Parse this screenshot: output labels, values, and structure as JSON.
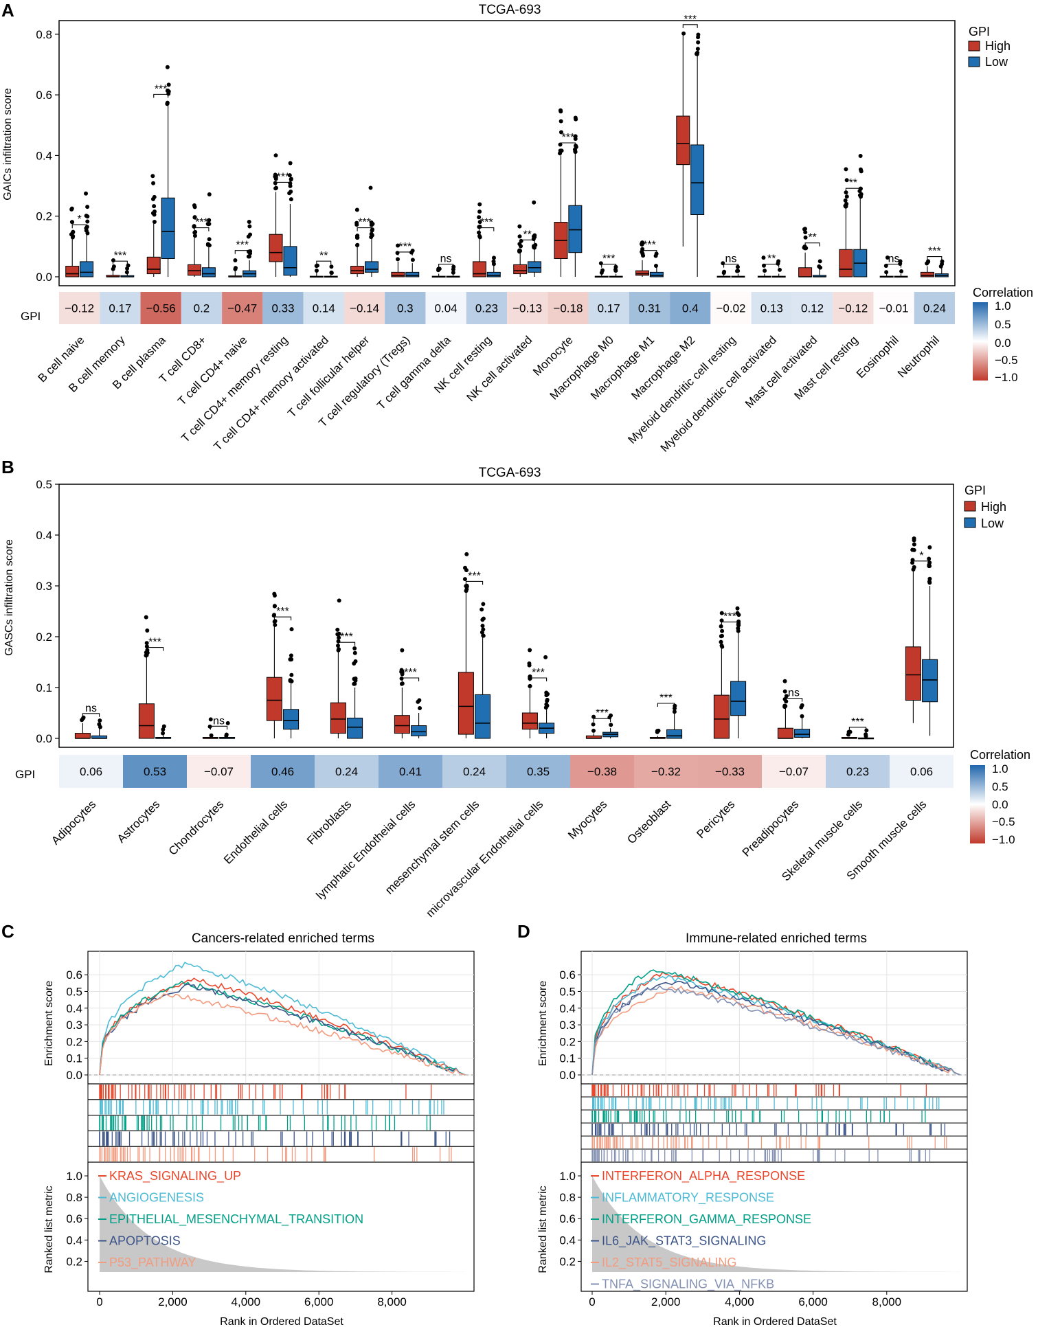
{
  "colors": {
    "high": "#C0392B",
    "low": "#1F6FB2",
    "neg": "#C0392B",
    "pos": "#2166AC"
  },
  "legend": {
    "title": "GPI",
    "high": "High",
    "low": "Low"
  },
  "colorbar": {
    "title": "Correlation",
    "ticks": [
      "1.0",
      "0.5",
      "0.0",
      "−0.5",
      "−1.0"
    ]
  },
  "panels": {
    "a": "A",
    "b": "B",
    "c": "C",
    "d": "D"
  },
  "chart_data": [
    {
      "panel": "A",
      "type": "box",
      "title": "TCGA-693",
      "ylabel": "GAICs infiltration score",
      "ylim": [
        0,
        0.82
      ],
      "yticks": [
        "0.0",
        "0.2",
        "0.4",
        "0.6",
        "0.8"
      ],
      "row_label": "GPI",
      "categories": [
        "B cell naive",
        "B cell memory",
        "B cell plasma",
        "T cell CD8+",
        "T cell CD4+ naive",
        "T cell CD4+ memory resting",
        "T cell CD4+ memory activated",
        "T cell follicular helper",
        "T cell regulatory (Tregs)",
        "T cell gamma delta",
        "NK cell resting",
        "NK cell activated",
        "Monocyte",
        "Macrophage M0",
        "Macrophage M1",
        "Macrophage M2",
        "Myeloid dendritic cell resting",
        "Myeloid dendritic cell activated",
        "Mast cell activated",
        "Mast cell resting",
        "Eosinophil",
        "Neutrophil"
      ],
      "significance": [
        "*",
        "***",
        "***",
        "***",
        "***",
        "***",
        "**",
        "***",
        "***",
        "ns",
        "***",
        "**",
        "***",
        "***",
        "***",
        "***",
        "ns",
        "**",
        "**",
        "**",
        "ns",
        "***"
      ],
      "correlation": [
        "−0.12",
        "0.17",
        "−0.56",
        "0.2",
        "−0.47",
        "0.33",
        "0.14",
        "−0.14",
        "0.3",
        "0.04",
        "0.23",
        "−0.13",
        "−0.18",
        "0.17",
        "0.31",
        "0.4",
        "−0.02",
        "0.13",
        "0.12",
        "−0.12",
        "−0.01",
        "0.24"
      ],
      "corr_values": [
        -0.12,
        0.17,
        -0.56,
        0.2,
        -0.47,
        0.33,
        0.14,
        -0.14,
        0.3,
        0.04,
        0.23,
        -0.13,
        -0.18,
        0.17,
        0.31,
        0.4,
        -0.02,
        0.13,
        0.12,
        -0.12,
        -0.01,
        0.24
      ],
      "high": [
        [
          0,
          0,
          0.01,
          0.035,
          0.13
        ],
        [
          0,
          0,
          0,
          0.005,
          0.02
        ],
        [
          0,
          0.01,
          0.025,
          0.065,
          0.18
        ],
        [
          0,
          0.005,
          0.02,
          0.04,
          0.13
        ],
        [
          0,
          0,
          0,
          0.003,
          0.02
        ],
        [
          0,
          0.05,
          0.08,
          0.14,
          0.28
        ],
        [
          0,
          0,
          0,
          0.002,
          0.02
        ],
        [
          0,
          0.01,
          0.02,
          0.035,
          0.1
        ],
        [
          0,
          0,
          0.005,
          0.015,
          0.05
        ],
        [
          0,
          0,
          0,
          0.002,
          0.01
        ],
        [
          0,
          0,
          0.01,
          0.05,
          0.13
        ],
        [
          0,
          0.01,
          0.02,
          0.04,
          0.08
        ],
        [
          0,
          0.06,
          0.12,
          0.18,
          0.4
        ],
        [
          0,
          0,
          0,
          0.002,
          0.01
        ],
        [
          0,
          0.005,
          0.01,
          0.02,
          0.055
        ],
        [
          0.1,
          0.37,
          0.44,
          0.53,
          0.8
        ],
        [
          0,
          0,
          0,
          0.002,
          0.01
        ],
        [
          0,
          0,
          0,
          0.002,
          0.01
        ],
        [
          0,
          0,
          0,
          0.03,
          0.08
        ],
        [
          0,
          0,
          0.025,
          0.09,
          0.23
        ],
        [
          0,
          0,
          0,
          0.002,
          0.01
        ],
        [
          0,
          0,
          0.005,
          0.015,
          0.035
        ]
      ],
      "low": [
        [
          0,
          0,
          0.015,
          0.05,
          0.14
        ],
        [
          0,
          0,
          0,
          0.004,
          0.015
        ],
        [
          0,
          0.06,
          0.15,
          0.26,
          0.57
        ],
        [
          0,
          0,
          0.01,
          0.03,
          0.1
        ],
        [
          0,
          0,
          0.01,
          0.02,
          0.055
        ],
        [
          0,
          0.005,
          0.03,
          0.1,
          0.24
        ],
        [
          0,
          0,
          0,
          0.002,
          0.01
        ],
        [
          0,
          0.015,
          0.025,
          0.05,
          0.13
        ],
        [
          0,
          0,
          0.005,
          0.015,
          0.045
        ],
        [
          0,
          0,
          0,
          0.002,
          0.01
        ],
        [
          0,
          0,
          0.005,
          0.015,
          0.04
        ],
        [
          0,
          0.015,
          0.03,
          0.05,
          0.09
        ],
        [
          0,
          0.08,
          0.155,
          0.235,
          0.41
        ],
        [
          0,
          0,
          0,
          0.002,
          0.01
        ],
        [
          0,
          0,
          0.005,
          0.015,
          0.035
        ],
        [
          0,
          0.205,
          0.31,
          0.435,
          0.73
        ],
        [
          0,
          0,
          0,
          0.002,
          0.01
        ],
        [
          0,
          0,
          0,
          0.002,
          0.01
        ],
        [
          0,
          0,
          0,
          0.005,
          0.03
        ],
        [
          0,
          0,
          0.045,
          0.09,
          0.26
        ],
        [
          0,
          0,
          0,
          0.002,
          0.01
        ],
        [
          0,
          0,
          0.005,
          0.01,
          0.03
        ]
      ]
    },
    {
      "panel": "B",
      "type": "box",
      "title": "TCGA-693",
      "ylabel": "GASCs infiltration score",
      "ylim": [
        0,
        0.5
      ],
      "yticks": [
        "0.0",
        "0.1",
        "0.2",
        "0.3",
        "0.4",
        "0.5"
      ],
      "row_label": "GPI",
      "categories": [
        "Adipocytes",
        "Astrocytes",
        "Chondrocytes",
        "Endothelial cells",
        "Fibroblasts",
        "lymphatic Endotheial cells",
        "mesenchymal stem cells",
        "microvascular Endothelial cells",
        "Myocytes",
        "Osteoblast",
        "Pericytes",
        "Preadipocytes",
        "Skeletal muscle cells",
        "Smooth muscle cells"
      ],
      "significance": [
        "ns",
        "***",
        "ns",
        "***",
        "***",
        "***",
        "***",
        "***",
        "***",
        "***",
        "***",
        "ns",
        "***",
        "*"
      ],
      "correlation": [
        "0.06",
        "0.53",
        "−0.07",
        "0.46",
        "0.24",
        "0.41",
        "0.24",
        "0.35",
        "−0.38",
        "−0.32",
        "−0.33",
        "−0.07",
        "0.23",
        "0.06"
      ],
      "corr_values": [
        0.06,
        0.53,
        -0.07,
        0.46,
        0.24,
        0.41,
        0.24,
        0.35,
        -0.38,
        -0.32,
        -0.33,
        -0.07,
        0.23,
        0.06
      ],
      "high": [
        [
          0,
          0,
          0,
          0.01,
          0.03
        ],
        [
          0,
          0,
          0.025,
          0.068,
          0.16
        ],
        [
          0,
          0,
          0,
          0.002,
          0.005
        ],
        [
          0,
          0.035,
          0.075,
          0.12,
          0.22
        ],
        [
          0,
          0.01,
          0.038,
          0.07,
          0.17
        ],
        [
          0,
          0.01,
          0.025,
          0.045,
          0.1
        ],
        [
          0,
          0.008,
          0.063,
          0.13,
          0.29
        ],
        [
          0,
          0.018,
          0.03,
          0.05,
          0.1
        ],
        [
          0,
          0,
          0,
          0.005,
          0.01
        ],
        [
          0,
          0,
          0,
          0.002,
          0.005
        ],
        [
          0,
          0,
          0.038,
          0.085,
          0.18
        ],
        [
          0,
          0,
          0,
          0.02,
          0.06
        ],
        [
          0,
          0,
          0,
          0.002,
          0.003
        ],
        [
          0.03,
          0.075,
          0.125,
          0.18,
          0.33
        ]
      ],
      "low": [
        [
          0,
          0,
          0,
          0.005,
          0.02
        ],
        [
          0,
          0,
          0,
          0.002,
          0.01
        ],
        [
          0,
          0,
          0,
          0.002,
          0.005
        ],
        [
          0,
          0.018,
          0.035,
          0.057,
          0.11
        ],
        [
          0,
          0,
          0.022,
          0.04,
          0.1
        ],
        [
          0,
          0.005,
          0.013,
          0.025,
          0.05
        ],
        [
          0,
          0,
          0.03,
          0.086,
          0.2
        ],
        [
          0,
          0.01,
          0.02,
          0.03,
          0.06
        ],
        [
          0,
          0.003,
          0.008,
          0.012,
          0.02
        ],
        [
          0,
          0,
          0.005,
          0.017,
          0.05
        ],
        [
          0,
          0.045,
          0.073,
          0.112,
          0.21
        ],
        [
          0,
          0.002,
          0.008,
          0.018,
          0.04
        ],
        [
          0,
          0,
          0,
          0.001,
          0.002
        ],
        [
          0.005,
          0.072,
          0.115,
          0.155,
          0.3
        ]
      ]
    },
    {
      "panel": "C",
      "type": "line",
      "title": "Cancers-related enriched terms",
      "ylabel": "Enrichment score",
      "ylabel2": "Ranked list metric",
      "xlabel": "Rank in Ordered DataSet",
      "xticks": [
        "0",
        "2,000",
        "4,000",
        "6,000",
        "8,000"
      ],
      "yticks": [
        "0.0",
        "0.1",
        "0.2",
        "0.3",
        "0.4",
        "0.5",
        "0.6"
      ],
      "yticks2": [
        "0.2",
        "0.4",
        "0.6",
        "0.8",
        "1.0"
      ],
      "series": [
        {
          "name": "KRAS_SIGNALING_UP",
          "color": "#E8472C",
          "peak": 0.57,
          "peak_at": 2500
        },
        {
          "name": "ANGIOGENESIS",
          "color": "#4DBBD5",
          "peak": 0.66,
          "peak_at": 2300
        },
        {
          "name": "EPITHELIAL_MESENCHYMAL_TRANSITION",
          "color": "#00A087",
          "peak": 0.55,
          "peak_at": 2200
        },
        {
          "name": "APOPTOSIS",
          "color": "#3C5488",
          "peak": 0.53,
          "peak_at": 2400
        },
        {
          "name": "P53_PATHWAY",
          "color": "#F39B7F",
          "peak": 0.48,
          "peak_at": 1800
        }
      ]
    },
    {
      "panel": "D",
      "type": "line",
      "title": "Immune-related enriched terms",
      "ylabel": "Enrichment score",
      "ylabel2": "Ranked list metric",
      "xlabel": "Rank in Ordered DataSet",
      "xticks": [
        "0",
        "2,000",
        "4,000",
        "6,000",
        "8,000"
      ],
      "yticks": [
        "0.0",
        "0.1",
        "0.2",
        "0.3",
        "0.4",
        "0.5",
        "0.6"
      ],
      "yticks2": [
        "0.2",
        "0.4",
        "0.6",
        "0.8",
        "1.0"
      ],
      "series": [
        {
          "name": "INTERFERON_ALPHA_RESPONSE",
          "color": "#E8472C",
          "peak": 0.61,
          "peak_at": 1900
        },
        {
          "name": "INFLAMMATORY_RESPONSE",
          "color": "#4DBBD5",
          "peak": 0.59,
          "peak_at": 1800
        },
        {
          "name": "INTERFERON_GAMMA_RESPONSE",
          "color": "#00A087",
          "peak": 0.63,
          "peak_at": 1600
        },
        {
          "name": "IL6_JAK_STAT3_SIGNALING",
          "color": "#3C5488",
          "peak": 0.56,
          "peak_at": 2000
        },
        {
          "name": "IL2_STAT5_SIGNALING",
          "color": "#F39B7F",
          "peak": 0.52,
          "peak_at": 2200
        },
        {
          "name": "TNFA_SIGNALING_VIA_NFKB",
          "color": "#8491B4",
          "peak": 0.53,
          "peak_at": 1700
        }
      ]
    }
  ]
}
